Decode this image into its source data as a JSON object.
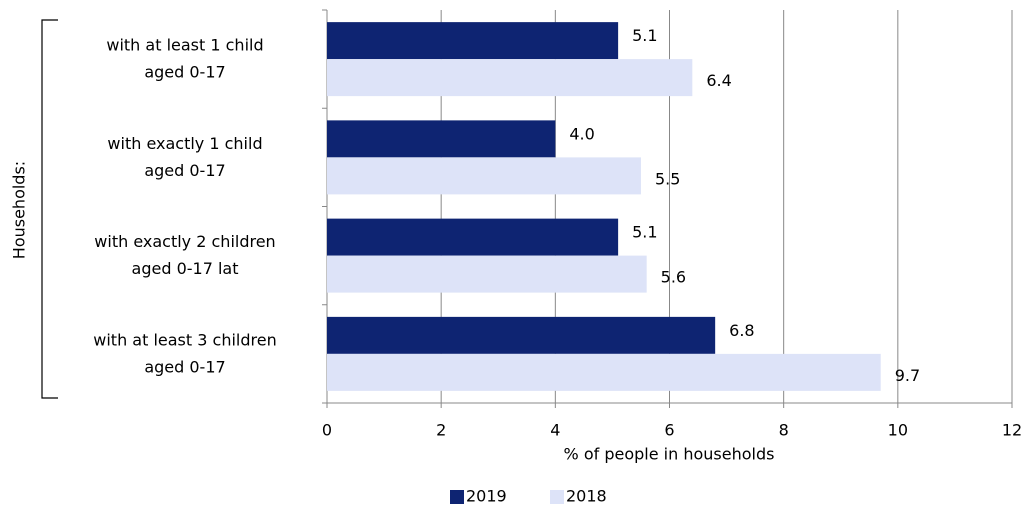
{
  "chart_data": {
    "type": "bar",
    "orientation": "horizontal",
    "y_axis_label": "Households:",
    "x_axis_label": "% of people in households",
    "categories": [
      "with at least 1 child\naged 0-17",
      "with exactly 1 child\naged 0-17",
      "with exactly 2 children\naged 0-17 lat",
      "with at least 3 children\naged 0-17"
    ],
    "series": [
      {
        "name": "2019",
        "color": "#0e2472",
        "values": [
          5.1,
          4.0,
          5.1,
          6.8
        ],
        "value_labels": [
          "5.1",
          "4.0",
          "5.1",
          "6.8"
        ]
      },
      {
        "name": "2018",
        "color": "#dde3f8",
        "values": [
          6.4,
          5.5,
          5.6,
          9.7
        ]
      }
    ],
    "xlim": [
      0,
      12
    ],
    "xticks": [
      0,
      2,
      4,
      6,
      8,
      10,
      12
    ],
    "grid": true,
    "legend": "bottom"
  }
}
